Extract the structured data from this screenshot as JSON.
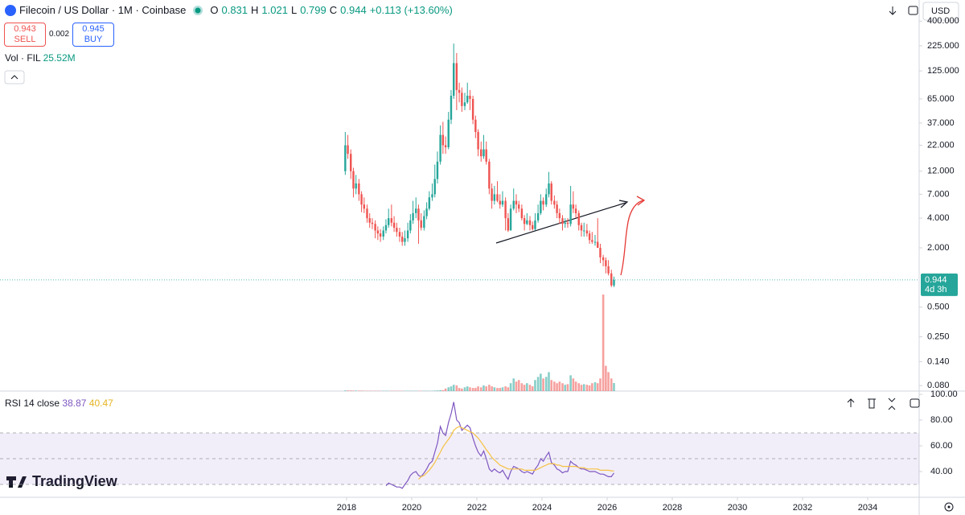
{
  "chart_data": [
    {
      "type": "candlestick",
      "title": "Filecoin / US Dollar · 1M · Coinbase",
      "ohlc_labels": [
        "O",
        "H",
        "L",
        "C"
      ],
      "change_label": "+0.113 (+13.60%)",
      "sell": 0.943,
      "sell_label": "SELL",
      "spread": 0.002,
      "buy": 0.945,
      "buy_label": "BUY",
      "volume_title": "Vol · FIL",
      "volume_last_label": "25.52M",
      "currency": "USD",
      "countdown": "4d 3h",
      "brand": "TradingView",
      "log_scale": true,
      "up_color": "#26a69a",
      "down_color": "#ef5350",
      "xlim": [
        2007.36,
        2035.58
      ],
      "xticks": [
        2018,
        2020,
        2022,
        2024,
        2026,
        2028,
        2030,
        2032,
        2034
      ],
      "ylim": [
        0.0703,
        656
      ],
      "yticks": [
        {
          "value": 400,
          "label": "400.000"
        },
        {
          "value": 225,
          "label": "225.000"
        },
        {
          "value": 125,
          "label": "125.000"
        },
        {
          "value": 65,
          "label": "65.000"
        },
        {
          "value": 37,
          "label": "37.000"
        },
        {
          "value": 22,
          "label": "22.000"
        },
        {
          "value": 12,
          "label": "12.000"
        },
        {
          "value": 7,
          "label": "7.000"
        },
        {
          "value": 4,
          "label": "4.000"
        },
        {
          "value": 2,
          "label": "2.000"
        },
        {
          "value": 0.5,
          "label": "0.500"
        },
        {
          "value": 0.25,
          "label": "0.250"
        },
        {
          "value": 0.14,
          "label": "0.140"
        },
        {
          "value": 0.08,
          "label": "0.080"
        }
      ],
      "x": [
        2017.96,
        2018.04,
        2018.13,
        2018.21,
        2018.29,
        2018.38,
        2018.46,
        2018.54,
        2018.63,
        2018.71,
        2018.79,
        2018.88,
        2018.96,
        2019.04,
        2019.13,
        2019.21,
        2019.29,
        2019.38,
        2019.46,
        2019.54,
        2019.63,
        2019.71,
        2019.79,
        2019.88,
        2019.96,
        2020.04,
        2020.13,
        2020.21,
        2020.29,
        2020.38,
        2020.46,
        2020.54,
        2020.63,
        2020.71,
        2020.79,
        2020.88,
        2020.96,
        2021.04,
        2021.13,
        2021.21,
        2021.29,
        2021.38,
        2021.46,
        2021.54,
        2021.63,
        2021.71,
        2021.79,
        2021.88,
        2021.96,
        2022.04,
        2022.13,
        2022.21,
        2022.29,
        2022.38,
        2022.46,
        2022.54,
        2022.63,
        2022.71,
        2022.79,
        2022.88,
        2022.96,
        2023.04,
        2023.13,
        2023.21,
        2023.29,
        2023.38,
        2023.46,
        2023.54,
        2023.63,
        2023.71,
        2023.79,
        2023.88,
        2023.96,
        2024.04,
        2024.13,
        2024.21,
        2024.29,
        2024.38,
        2024.46,
        2024.54,
        2024.63,
        2024.71,
        2024.79,
        2024.88,
        2024.96,
        2025.04,
        2025.13,
        2025.21,
        2025.29,
        2025.38,
        2025.46,
        2025.54,
        2025.63,
        2025.71,
        2025.79,
        2025.88,
        2025.96,
        2026.04,
        2026.13,
        2026.21
      ],
      "open": [
        12,
        22,
        18,
        12,
        8,
        9,
        7,
        5.5,
        5,
        4,
        3.6,
        3.5,
        3,
        2.8,
        2.6,
        3,
        3.4,
        4,
        3.6,
        3.2,
        2.9,
        2.6,
        2.3,
        2.5,
        3,
        3.8,
        4.5,
        5,
        3.8,
        3.2,
        4.2,
        5,
        6.5,
        7,
        10,
        15,
        28,
        22,
        21,
        40,
        70,
        150,
        80,
        75,
        55,
        60,
        70,
        65,
        40,
        30,
        20,
        17,
        20,
        15,
        8,
        6,
        7,
        6,
        5.5,
        6,
        4,
        3,
        5,
        6,
        5.5,
        5,
        4,
        3.5,
        3.8,
        3.4,
        3.1,
        3.8,
        4.5,
        6,
        5.5,
        7,
        9,
        6,
        5.5,
        4.5,
        4,
        3.5,
        3.6,
        3.5,
        5.5,
        5,
        4.5,
        3.4,
        3,
        3,
        2.8,
        2.4,
        2.3,
        2.3,
        2,
        1.6,
        1.5,
        1.3,
        1.1,
        0.831
      ],
      "high": [
        30,
        28,
        20,
        13,
        11,
        10,
        7.5,
        6.5,
        5.5,
        4.5,
        4,
        3.8,
        3.3,
        3.1,
        3.3,
        3.9,
        5,
        5.5,
        4.2,
        3.6,
        3.2,
        2.9,
        3,
        3.6,
        4.4,
        6,
        6.5,
        5.5,
        4.5,
        4.8,
        5.8,
        7.5,
        9,
        14,
        19,
        35,
        38,
        27,
        48,
        80,
        237,
        190,
        95,
        85,
        75,
        95,
        80,
        70,
        44,
        32,
        24,
        28,
        24,
        16,
        9,
        8.5,
        9.5,
        7,
        7.5,
        6.5,
        4.5,
        5.5,
        8,
        7,
        6,
        5.5,
        4.3,
        4.5,
        4.2,
        3.7,
        4.5,
        5.5,
        7,
        6.5,
        8,
        11.8,
        9.5,
        6.8,
        6,
        5,
        4.3,
        4,
        4,
        8.5,
        7.5,
        5.5,
        4.8,
        3.6,
        3.6,
        3.5,
        3,
        2.9,
        2.7,
        4,
        2.2,
        1.7,
        1.6,
        1.5,
        1.2,
        1.021
      ],
      "low": [
        11,
        16,
        10,
        6.5,
        7,
        6,
        4.6,
        4.5,
        3.6,
        3.2,
        3.1,
        2.5,
        2.4,
        2.3,
        2.4,
        2.8,
        3.2,
        3.3,
        2.9,
        2.6,
        2.3,
        2.1,
        2.1,
        2.3,
        2.8,
        3.5,
        4,
        2.2,
        3,
        3,
        3.9,
        4.8,
        6,
        6.5,
        9,
        14,
        18,
        18,
        20,
        36,
        65,
        50,
        60,
        48,
        50,
        58,
        50,
        36,
        26,
        17,
        15,
        16,
        14,
        7,
        5,
        5.5,
        5.8,
        5,
        5.2,
        3,
        2.9,
        3,
        4.8,
        4.5,
        4.6,
        3.8,
        3,
        3.4,
        3,
        3,
        3,
        3.6,
        4.3,
        4.8,
        5.2,
        6.5,
        5.5,
        5,
        4,
        3.5,
        3,
        3.2,
        3.2,
        3.3,
        4.5,
        4,
        3,
        2.6,
        2.6,
        2.6,
        2.2,
        2.2,
        2.1,
        2,
        1.4,
        1.3,
        1.1,
        1.05,
        0.8,
        0.799
      ],
      "close": [
        22,
        18,
        12,
        8,
        9,
        7,
        5.5,
        5,
        4,
        3.6,
        3.5,
        3,
        2.8,
        2.6,
        3,
        3.4,
        4,
        3.6,
        3.2,
        2.9,
        2.6,
        2.3,
        2.5,
        3,
        3.8,
        4.5,
        5,
        3.8,
        3.2,
        4.2,
        5,
        6.5,
        7,
        10,
        15,
        28,
        22,
        21,
        40,
        70,
        150,
        80,
        75,
        55,
        60,
        70,
        65,
        40,
        30,
        20,
        17,
        20,
        15,
        8,
        6,
        7,
        6,
        5.5,
        6,
        4,
        3,
        5,
        6,
        5.5,
        5,
        4,
        3.5,
        3.8,
        3.4,
        3.1,
        3.8,
        4.5,
        6,
        5.5,
        7,
        9,
        6,
        5.5,
        4.5,
        4,
        3.5,
        3.6,
        3.5,
        5.5,
        5,
        4.5,
        3.4,
        3,
        3,
        2.8,
        2.4,
        2.3,
        2.3,
        2,
        1.6,
        1.5,
        1.3,
        1.1,
        0.831,
        0.944
      ],
      "volume": [
        2,
        2,
        2,
        1.5,
        1.5,
        1.5,
        1.5,
        1,
        1,
        1,
        1,
        1,
        1,
        1,
        1,
        1,
        1,
        1,
        1,
        1,
        1,
        1,
        1,
        1,
        1,
        1,
        1,
        1,
        1,
        1,
        1,
        1,
        1,
        1.5,
        2,
        3,
        3,
        8,
        12,
        15,
        20,
        18,
        10,
        8,
        12,
        15,
        12,
        10,
        10,
        15,
        12,
        18,
        15,
        20,
        15,
        12,
        10,
        10,
        12,
        15,
        12,
        25,
        40,
        30,
        35,
        25,
        20,
        25,
        20,
        15,
        35,
        45,
        55,
        40,
        45,
        60,
        35,
        30,
        25,
        30,
        25,
        20,
        22,
        50,
        40,
        30,
        25,
        20,
        22,
        20,
        18,
        25,
        28,
        25,
        40,
        306,
        80,
        60,
        40,
        25.52
      ]
    },
    {
      "type": "line",
      "title": "RSI 14 close",
      "ylim": [
        20,
        101.9
      ],
      "yticks": [
        {
          "value": 100,
          "label": "100.00"
        },
        {
          "value": 80,
          "label": "80.00"
        },
        {
          "value": 60,
          "label": "60.00"
        },
        {
          "value": 40,
          "label": "40.00"
        }
      ],
      "band": [
        30,
        70
      ],
      "midline": 50,
      "band_color": "#7e57c2",
      "series": [
        {
          "color": "#7e57c2",
          "values": [
            null,
            null,
            null,
            null,
            null,
            null,
            null,
            null,
            null,
            null,
            null,
            null,
            null,
            null,
            null,
            29,
            31,
            30,
            29,
            28,
            28,
            27,
            30,
            33,
            37,
            39,
            40,
            37,
            36,
            39,
            42,
            46,
            48,
            55,
            62,
            75,
            70,
            68,
            78,
            85,
            94,
            80,
            78,
            72,
            74,
            76,
            74,
            66,
            60,
            55,
            52,
            56,
            50,
            42,
            40,
            42,
            40,
            39,
            41,
            37,
            34,
            40,
            44,
            43,
            42,
            40,
            39,
            40,
            39,
            38,
            42,
            45,
            50,
            48,
            52,
            55,
            47,
            45,
            42,
            41,
            39,
            40,
            40,
            48,
            46,
            45,
            43,
            42,
            42,
            41,
            40,
            40,
            40,
            39,
            38,
            38,
            37,
            36,
            36,
            38.87
          ]
        },
        {
          "color": "#f5c242",
          "values": [
            null,
            null,
            null,
            null,
            null,
            null,
            null,
            null,
            null,
            null,
            null,
            null,
            null,
            null,
            null,
            null,
            null,
            null,
            null,
            null,
            null,
            null,
            null,
            null,
            null,
            null,
            null,
            34,
            36,
            37,
            39,
            41,
            44,
            47,
            51,
            55,
            59,
            62,
            65,
            68,
            72,
            74,
            75,
            74,
            73,
            72,
            71,
            70,
            68,
            66,
            63,
            60,
            57,
            54,
            51,
            49,
            47,
            45,
            44,
            43,
            42,
            42,
            42,
            42,
            42,
            42,
            41,
            41,
            41,
            41,
            41,
            42,
            43,
            44,
            45,
            46,
            46,
            46,
            45,
            45,
            44,
            44,
            44,
            44,
            44,
            44,
            43,
            43,
            43,
            42,
            42,
            42,
            42,
            42,
            41,
            41,
            41,
            41,
            40.6,
            40.47
          ]
        }
      ]
    }
  ]
}
